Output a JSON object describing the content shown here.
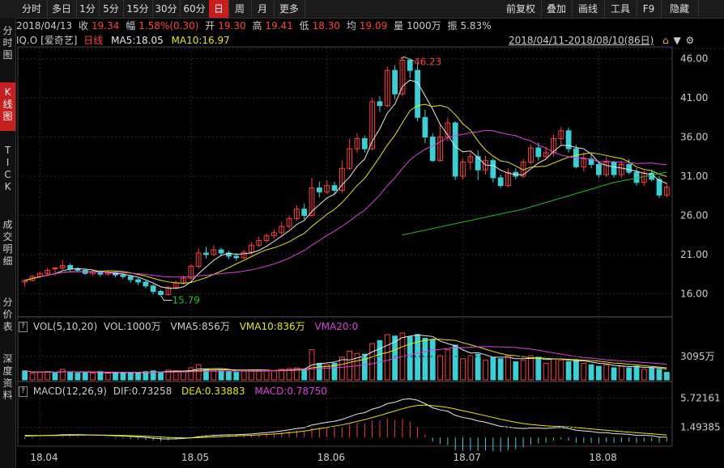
{
  "tabs": [
    "分时",
    "多日",
    "1分",
    "5分",
    "15分",
    "30分",
    "60分",
    "日",
    "周",
    "月",
    "更多"
  ],
  "active_tab": "日",
  "right_tabs": [
    "前复权",
    "叠加",
    "画线",
    "工具",
    "F9",
    "隐藏"
  ],
  "sidebar": [
    "分时图",
    "K线图",
    "TICK",
    "成交明细",
    "分价表",
    "深度资料"
  ],
  "info": {
    "date": "2018/04/13",
    "close_label": "收",
    "close": "19.34",
    "change_label": "幅",
    "change": "1.58%(0.30)",
    "open_label": "开",
    "open": "19.30",
    "high_label": "高",
    "high": "19.41",
    "low_label": "低",
    "low": "18.30",
    "avg_label": "均",
    "avg": "19.09",
    "vol_label": "量",
    "vol": "1000万",
    "amp_label": "振",
    "amp": "5.83%"
  },
  "legend_main": {
    "symbol": "IQ.O",
    "name": "[爱奇艺]",
    "period": "日线",
    "ma5": "MA5:18.05",
    "ma10": "MA10:16.97",
    "range": "2018/04/11-2018/08/10(86日)"
  },
  "legend_vol": {
    "label": "VOL(5,10,20)",
    "vol": "VOL:1000万",
    "vma5": "VMA5:856万",
    "vma10": "VMA10:836万",
    "vma20": "VMA20:0"
  },
  "legend_macd": {
    "label": "MACD(12,26,9)",
    "dif": "DIF:0.73258",
    "dea": "DEA:0.33883",
    "macd": "MACD:0.78750"
  },
  "price_axis": [
    "46.00",
    "41.00",
    "36.00",
    "31.00",
    "26.00",
    "21.00",
    "16.00"
  ],
  "vol_axis": "3095万",
  "macd_axis": [
    "5.72161",
    "1.49385"
  ],
  "x_axis": [
    "18.04",
    "18.05",
    "18.06",
    "18.07",
    "18.08"
  ],
  "annotations": {
    "high": "46.23",
    "low": "15.79"
  },
  "colors": {
    "up": "#ff3b3b",
    "down": "#39d0d8",
    "ma5": "#e8e8e8",
    "ma10": "#e8e800",
    "ma20": "#e040e0",
    "ma60": "#20c020",
    "active": "#c81e1e"
  },
  "chart_data": {
    "type": "candlestick",
    "ylim": [
      14.5,
      47.5
    ],
    "x_ticks": [
      "18.04",
      "18.05",
      "18.06",
      "18.07",
      "18.08"
    ],
    "candles": [
      [
        17.5,
        17.7,
        16.9,
        17.8
      ],
      [
        17.7,
        18.2,
        17.6,
        18.4
      ],
      [
        18.2,
        18.6,
        18.0,
        18.8
      ],
      [
        18.6,
        19.0,
        18.4,
        19.3
      ],
      [
        19.3,
        19.3,
        18.3,
        19.4
      ],
      [
        19.3,
        19.6,
        19.0,
        20.3
      ],
      [
        19.6,
        19.2,
        18.9,
        19.9
      ],
      [
        19.2,
        19.0,
        18.7,
        19.4
      ],
      [
        19.0,
        18.6,
        18.4,
        19.2
      ],
      [
        18.6,
        18.8,
        18.3,
        19.0
      ],
      [
        18.8,
        18.5,
        18.2,
        19.0
      ],
      [
        18.5,
        18.7,
        18.3,
        18.9
      ],
      [
        18.7,
        18.4,
        18.1,
        18.9
      ],
      [
        18.4,
        18.2,
        17.9,
        18.6
      ],
      [
        18.2,
        17.8,
        17.4,
        18.4
      ],
      [
        17.8,
        17.5,
        17.1,
        18.0
      ],
      [
        17.5,
        17.0,
        16.7,
        17.7
      ],
      [
        17.0,
        16.3,
        15.9,
        17.2
      ],
      [
        16.3,
        15.9,
        15.79,
        16.5
      ],
      [
        15.9,
        16.8,
        15.8,
        17.0
      ],
      [
        16.8,
        17.4,
        16.6,
        17.7
      ],
      [
        17.4,
        18.0,
        17.2,
        18.3
      ],
      [
        18.0,
        19.5,
        17.8,
        19.8
      ],
      [
        19.5,
        21.2,
        19.2,
        21.8
      ],
      [
        21.2,
        21.0,
        20.5,
        22.0
      ],
      [
        21.0,
        21.6,
        20.8,
        22.2
      ],
      [
        21.6,
        21.2,
        20.8,
        21.9
      ],
      [
        21.2,
        20.8,
        20.4,
        21.5
      ],
      [
        20.8,
        20.6,
        20.2,
        21.2
      ],
      [
        20.6,
        21.3,
        20.4,
        21.6
      ],
      [
        21.3,
        22.2,
        21.0,
        22.6
      ],
      [
        22.2,
        22.8,
        21.9,
        23.3
      ],
      [
        22.8,
        23.4,
        22.5,
        23.7
      ],
      [
        23.4,
        23.8,
        23.0,
        24.2
      ],
      [
        23.8,
        24.6,
        23.5,
        25.2
      ],
      [
        24.6,
        25.6,
        24.3,
        26.0
      ],
      [
        25.6,
        26.8,
        25.3,
        27.3
      ],
      [
        26.8,
        26.0,
        25.5,
        27.5
      ],
      [
        26.0,
        29.5,
        25.8,
        30.8
      ],
      [
        29.5,
        29.0,
        28.3,
        30.3
      ],
      [
        29.0,
        29.8,
        28.7,
        30.5
      ],
      [
        29.8,
        29.2,
        28.7,
        30.3
      ],
      [
        29.2,
        32.0,
        28.9,
        33.0
      ],
      [
        32.0,
        34.5,
        31.8,
        35.8
      ],
      [
        34.5,
        35.8,
        34.0,
        36.5
      ],
      [
        35.8,
        34.5,
        34.0,
        36.2
      ],
      [
        34.5,
        40.5,
        34.3,
        41.0
      ],
      [
        40.5,
        40.0,
        39.2,
        41.2
      ],
      [
        40.0,
        44.5,
        39.8,
        45.0
      ],
      [
        44.5,
        41.5,
        40.8,
        45.2
      ],
      [
        41.5,
        45.8,
        41.2,
        46.23
      ],
      [
        45.8,
        44.5,
        43.5,
        46.0
      ],
      [
        44.5,
        38.5,
        38.0,
        45.5
      ],
      [
        38.5,
        36.0,
        35.2,
        39.5
      ],
      [
        36.0,
        33.0,
        32.8,
        36.5
      ],
      [
        33.0,
        36.0,
        32.8,
        37.5
      ],
      [
        36.0,
        37.8,
        35.5,
        38.5
      ],
      [
        37.8,
        31.0,
        30.5,
        38.0
      ],
      [
        31.0,
        32.8,
        30.6,
        33.3
      ],
      [
        32.8,
        33.5,
        31.8,
        34.0
      ],
      [
        33.5,
        31.8,
        30.5,
        34.3
      ],
      [
        31.8,
        33.0,
        31.2,
        33.6
      ],
      [
        33.0,
        30.8,
        30.2,
        33.3
      ],
      [
        30.8,
        29.8,
        29.5,
        31.2
      ],
      [
        29.8,
        31.5,
        29.6,
        32.0
      ],
      [
        31.5,
        31.0,
        30.6,
        32.0
      ],
      [
        31.0,
        32.8,
        30.8,
        33.2
      ],
      [
        32.8,
        34.6,
        32.5,
        35.0
      ],
      [
        34.6,
        33.5,
        33.0,
        35.3
      ],
      [
        33.5,
        34.0,
        33.2,
        34.7
      ],
      [
        34.0,
        35.8,
        33.5,
        36.3
      ],
      [
        35.8,
        36.8,
        35.0,
        37.3
      ],
      [
        36.8,
        34.5,
        34.0,
        37.2
      ],
      [
        34.5,
        32.2,
        32.0,
        35.0
      ],
      [
        32.2,
        33.2,
        31.6,
        34.0
      ],
      [
        33.2,
        32.5,
        32.0,
        33.8
      ],
      [
        32.5,
        31.2,
        30.8,
        33.0
      ],
      [
        31.2,
        32.8,
        30.9,
        33.5
      ],
      [
        32.8,
        31.2,
        30.8,
        33.0
      ],
      [
        31.2,
        32.5,
        30.8,
        33.0
      ],
      [
        32.5,
        31.5,
        31.2,
        33.2
      ],
      [
        31.5,
        30.2,
        29.8,
        32.0
      ],
      [
        30.2,
        31.4,
        29.8,
        31.8
      ],
      [
        31.4,
        30.6,
        30.3,
        31.8
      ],
      [
        30.6,
        28.6,
        28.2,
        31.0
      ],
      [
        28.6,
        29.6,
        28.3,
        30.2
      ]
    ],
    "ma_series": [
      {
        "name": "MA5",
        "color": "#e8e8e8"
      },
      {
        "name": "MA10",
        "color": "#e8e800"
      },
      {
        "name": "MA20",
        "color": "#e040e0"
      },
      {
        "name": "MA60",
        "color": "#20c020"
      }
    ],
    "volume": [
      [
        12,
        0
      ],
      [
        9,
        1
      ],
      [
        10,
        1
      ],
      [
        11,
        1
      ],
      [
        9,
        0
      ],
      [
        14,
        1
      ],
      [
        10,
        0
      ],
      [
        9,
        0
      ],
      [
        10,
        0
      ],
      [
        9,
        1
      ],
      [
        11,
        0
      ],
      [
        9,
        1
      ],
      [
        10,
        0
      ],
      [
        10,
        0
      ],
      [
        9,
        0
      ],
      [
        10,
        0
      ],
      [
        11,
        0
      ],
      [
        12,
        0
      ],
      [
        10,
        0
      ],
      [
        13,
        1
      ],
      [
        12,
        1
      ],
      [
        11,
        1
      ],
      [
        16,
        1
      ],
      [
        20,
        1
      ],
      [
        14,
        0
      ],
      [
        13,
        1
      ],
      [
        12,
        0
      ],
      [
        11,
        0
      ],
      [
        10,
        0
      ],
      [
        12,
        1
      ],
      [
        13,
        1
      ],
      [
        12,
        1
      ],
      [
        13,
        1
      ],
      [
        12,
        1
      ],
      [
        14,
        1
      ],
      [
        15,
        1
      ],
      [
        16,
        1
      ],
      [
        14,
        0
      ],
      [
        40,
        1
      ],
      [
        22,
        0
      ],
      [
        20,
        1
      ],
      [
        22,
        0
      ],
      [
        30,
        1
      ],
      [
        38,
        1
      ],
      [
        35,
        1
      ],
      [
        34,
        0
      ],
      [
        48,
        1
      ],
      [
        52,
        0
      ],
      [
        60,
        1
      ],
      [
        58,
        0
      ],
      [
        62,
        1
      ],
      [
        57,
        0
      ],
      [
        60,
        0
      ],
      [
        55,
        0
      ],
      [
        53,
        0
      ],
      [
        32,
        1
      ],
      [
        40,
        1
      ],
      [
        46,
        0
      ],
      [
        28,
        1
      ],
      [
        32,
        1
      ],
      [
        34,
        0
      ],
      [
        26,
        1
      ],
      [
        30,
        0
      ],
      [
        28,
        0
      ],
      [
        32,
        1
      ],
      [
        24,
        0
      ],
      [
        26,
        1
      ],
      [
        32,
        1
      ],
      [
        30,
        0
      ],
      [
        22,
        1
      ],
      [
        28,
        1
      ],
      [
        26,
        1
      ],
      [
        24,
        0
      ],
      [
        26,
        0
      ],
      [
        22,
        1
      ],
      [
        20,
        0
      ],
      [
        18,
        0
      ],
      [
        20,
        1
      ],
      [
        16,
        0
      ],
      [
        18,
        1
      ],
      [
        16,
        0
      ],
      [
        18,
        0
      ],
      [
        14,
        1
      ],
      [
        16,
        0
      ],
      [
        14,
        0
      ],
      [
        10,
        0
      ]
    ],
    "macd_dif": [
      0.2,
      0.22,
      0.25,
      0.3,
      0.33,
      0.38,
      0.4,
      0.4,
      0.38,
      0.35,
      0.32,
      0.28,
      0.24,
      0.2,
      0.14,
      0.08,
      0.0,
      -0.1,
      -0.2,
      -0.22,
      -0.2,
      -0.15,
      -0.05,
      0.1,
      0.2,
      0.3,
      0.35,
      0.38,
      0.4,
      0.45,
      0.5,
      0.6,
      0.7,
      0.8,
      0.95,
      1.1,
      1.3,
      1.4,
      1.8,
      2.0,
      2.2,
      2.35,
      2.6,
      3.0,
      3.4,
      3.6,
      4.1,
      4.4,
      4.9,
      5.1,
      5.5,
      5.6,
      5.4,
      4.9,
      4.3,
      4.0,
      3.8,
      3.2,
      2.9,
      2.7,
      2.4,
      2.2,
      1.9,
      1.6,
      1.5,
      1.35,
      1.3,
      1.35,
      1.35,
      1.3,
      1.4,
      1.45,
      1.3,
      1.05,
      0.95,
      0.85,
      0.7,
      0.7,
      0.55,
      0.5,
      0.45,
      0.3,
      0.3,
      0.25,
      0.05,
      0.05
    ],
    "macd_dea": [
      0.3,
      0.29,
      0.28,
      0.28,
      0.29,
      0.3,
      0.32,
      0.33,
      0.34,
      0.34,
      0.34,
      0.33,
      0.31,
      0.29,
      0.26,
      0.22,
      0.18,
      0.12,
      0.06,
      0.0,
      -0.04,
      -0.06,
      -0.06,
      -0.03,
      0.02,
      0.08,
      0.13,
      0.18,
      0.22,
      0.27,
      0.31,
      0.37,
      0.43,
      0.5,
      0.58,
      0.68,
      0.8,
      0.92,
      1.1,
      1.28,
      1.46,
      1.64,
      1.83,
      2.06,
      2.33,
      2.58,
      2.88,
      3.18,
      3.52,
      3.83,
      4.16,
      4.45,
      4.64,
      4.69,
      4.61,
      4.49,
      4.35,
      4.12,
      3.88,
      3.64,
      3.39,
      3.15,
      2.9,
      2.64,
      2.41,
      2.2,
      2.02,
      1.88,
      1.78,
      1.68,
      1.62,
      1.59,
      1.53,
      1.43,
      1.34,
      1.24,
      1.13,
      1.04,
      0.94,
      0.85,
      0.77,
      0.68,
      0.6,
      0.53,
      0.43,
      0.36
    ]
  }
}
